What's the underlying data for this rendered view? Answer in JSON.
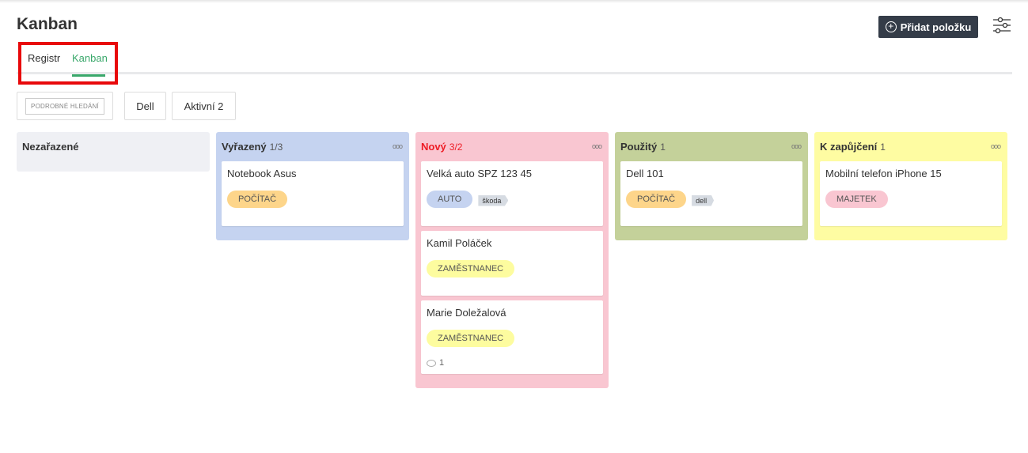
{
  "header": {
    "title": "Kanban",
    "add_button": "Přidat položku",
    "add_icon": "plus-circle-icon",
    "settings_icon": "sliders-icon"
  },
  "tabs": [
    {
      "label": "Registr",
      "active": false
    },
    {
      "label": "Kanban",
      "active": true
    }
  ],
  "filters": {
    "advanced_search": "PODROBNÉ HLEDÁNÍ",
    "dell": "Dell",
    "active": "Aktivní 2"
  },
  "colors": {
    "accent": "#3aa86b",
    "annotation": "#e8090b",
    "button": "#343c48"
  },
  "columns": [
    {
      "title": "Nezařazené",
      "count": "",
      "bg": "#eff0f4",
      "title_color": "#333",
      "cards": []
    },
    {
      "title": "Vyřazený",
      "count": "1/3",
      "bg": "#c5d3f0",
      "title_color": "#333",
      "cards": [
        {
          "title": "Notebook Asus",
          "pill": "POČÍTAČ",
          "pill_color": "#fdd58a",
          "tag": "",
          "comments": ""
        }
      ]
    },
    {
      "title": "Nový",
      "count": "3/2",
      "bg": "#f9c6d1",
      "title_color": "#ee1c25",
      "cards": [
        {
          "title": "Velká auto SPZ 123 45",
          "pill": "AUTO",
          "pill_color": "#c5d3f0",
          "tag": "škoda",
          "comments": ""
        },
        {
          "title": "Kamil Poláček",
          "pill": "ZAMĚSTNANEC",
          "pill_color": "#fdfc9f",
          "tag": "",
          "comments": ""
        },
        {
          "title": "Marie Doležalová",
          "pill": "ZAMĚSTNANEC",
          "pill_color": "#fdfc9f",
          "tag": "",
          "comments": "1"
        }
      ]
    },
    {
      "title": "Použitý",
      "count": "1",
      "bg": "#c4d19a",
      "title_color": "#333",
      "cards": [
        {
          "title": "Dell 101",
          "pill": "POČÍTAČ",
          "pill_color": "#fdd58a",
          "tag": "dell",
          "comments": ""
        }
      ]
    },
    {
      "title": "K zapůjčení",
      "count": "1",
      "bg": "#fefca2",
      "title_color": "#333",
      "cards": [
        {
          "title": "Mobilní telefon iPhone 15",
          "pill": "MAJETEK",
          "pill_color": "#f9c6d1",
          "tag": "",
          "comments": ""
        }
      ]
    }
  ]
}
